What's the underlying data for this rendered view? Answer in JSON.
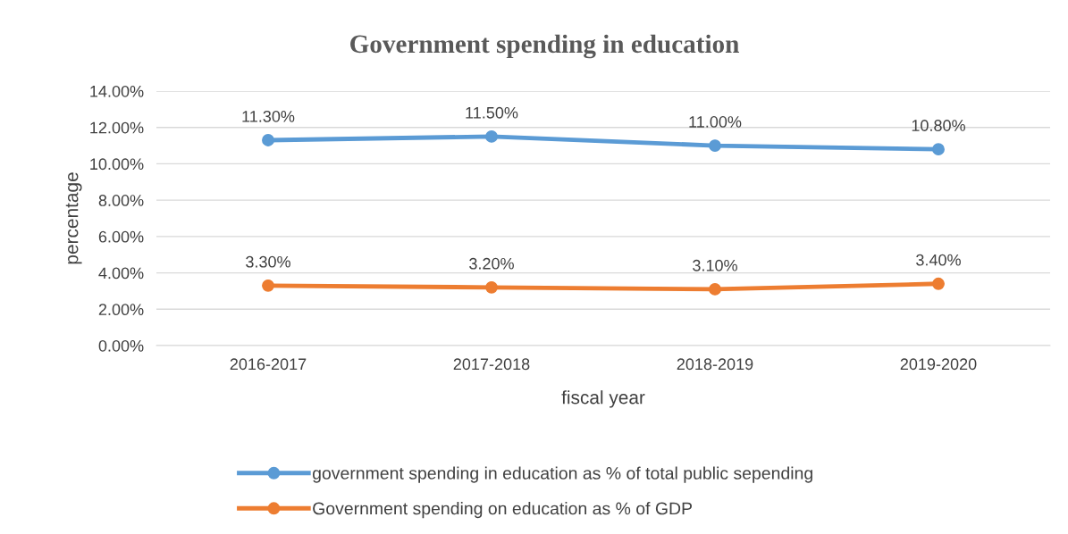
{
  "chart_data": {
    "type": "line",
    "title": "Government spending in education",
    "xlabel": "fiscal year",
    "ylabel": "percentage",
    "categories": [
      "2016-2017",
      "2017-2018",
      "2018-2019",
      "2019-2020"
    ],
    "series": [
      {
        "name": "government spending in education as % of total public sepending",
        "color": "#5b9bd5",
        "values": [
          11.3,
          11.5,
          11.0,
          10.8
        ],
        "value_labels": [
          "11.30%",
          "11.50%",
          "11.00%",
          "10.80%"
        ]
      },
      {
        "name": "Government spending on education as % of GDP",
        "color": "#ed7d31",
        "values": [
          3.3,
          3.2,
          3.1,
          3.4
        ],
        "value_labels": [
          "3.30%",
          "3.20%",
          "3.10%",
          "3.40%"
        ]
      }
    ],
    "ylim": [
      0,
      14
    ],
    "yticks": [
      {
        "value": 0,
        "label": "0.00%"
      },
      {
        "value": 2,
        "label": "2.00%"
      },
      {
        "value": 4,
        "label": "4.00%"
      },
      {
        "value": 6,
        "label": "6.00%"
      },
      {
        "value": 8,
        "label": "8.00%"
      },
      {
        "value": 10,
        "label": "10.00%"
      },
      {
        "value": 12,
        "label": "12.00%"
      },
      {
        "value": 14,
        "label": "14.00%"
      }
    ],
    "grid": "y",
    "legend": "bottom",
    "marker": "circle",
    "line_style": "solid"
  }
}
